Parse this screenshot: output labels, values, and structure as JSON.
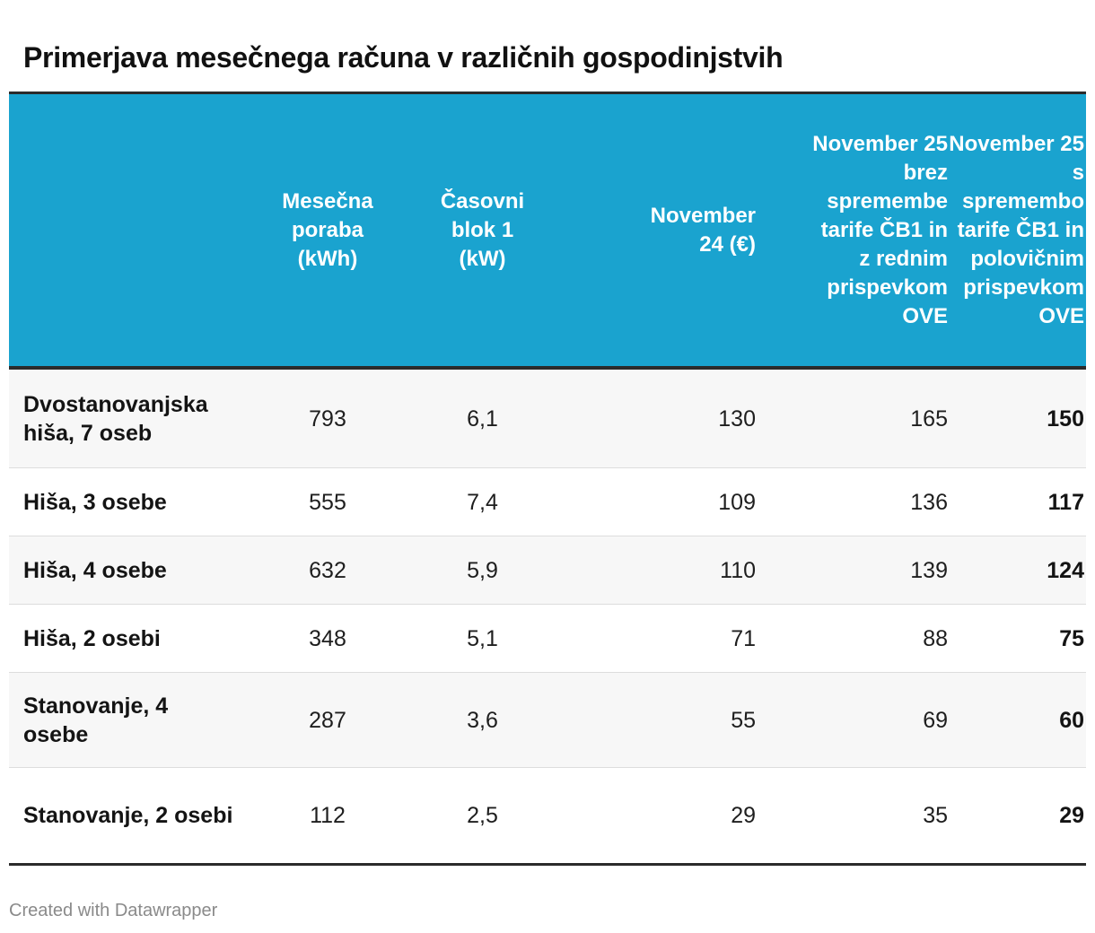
{
  "chart_data": {
    "type": "table",
    "title": "Primerjava mesečnega računa v različnih gospodinjstvih",
    "columns": [
      "",
      "Mesečna poraba (kWh)",
      "Časovni blok 1 (kW)",
      "November 24 (€)",
      "November 25 brez spremembe tarife ČB1 in z rednim prispevkom OVE",
      "November 25 s spremembo tarife ČB1 in polovičnim prispevkom OVE"
    ],
    "rows": [
      [
        "Dvostanovanjska hiša, 7 oseb",
        "793",
        "6,1",
        "130",
        "165",
        "150"
      ],
      [
        "Hiša, 3 osebe",
        "555",
        "7,4",
        "109",
        "136",
        "117"
      ],
      [
        "Hiša, 4 osebe",
        "632",
        "5,9",
        "110",
        "139",
        "124"
      ],
      [
        "Hiša, 2 osebi",
        "348",
        "5,1",
        "71",
        "88",
        "75"
      ],
      [
        "Stanovanje, 4 osebe",
        "287",
        "3,6",
        "55",
        "69",
        "60"
      ],
      [
        "Stanovanje, 2 osebi",
        "112",
        "2,5",
        "29",
        "35",
        "29"
      ]
    ]
  },
  "colors": {
    "header_background": "#1aa3cf",
    "header_text": "#ffffff",
    "row_alt_background": "#f7f7f7"
  },
  "footer": "Created with Datawrapper"
}
